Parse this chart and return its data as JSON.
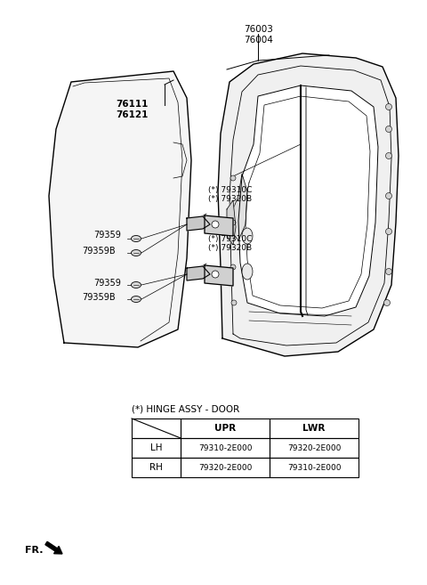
{
  "bg_color": "#ffffff",
  "line_color": "#000000",
  "text_color": "#000000",
  "font_size_label": 7.0,
  "font_size_table": 7.5,
  "table_title": "(*) HINGE ASSY - DOOR",
  "table": {
    "rows": [
      [
        "LH",
        "79310-2E000",
        "79320-2E000"
      ],
      [
        "RH",
        "79320-2E000",
        "79310-2E000"
      ]
    ]
  }
}
